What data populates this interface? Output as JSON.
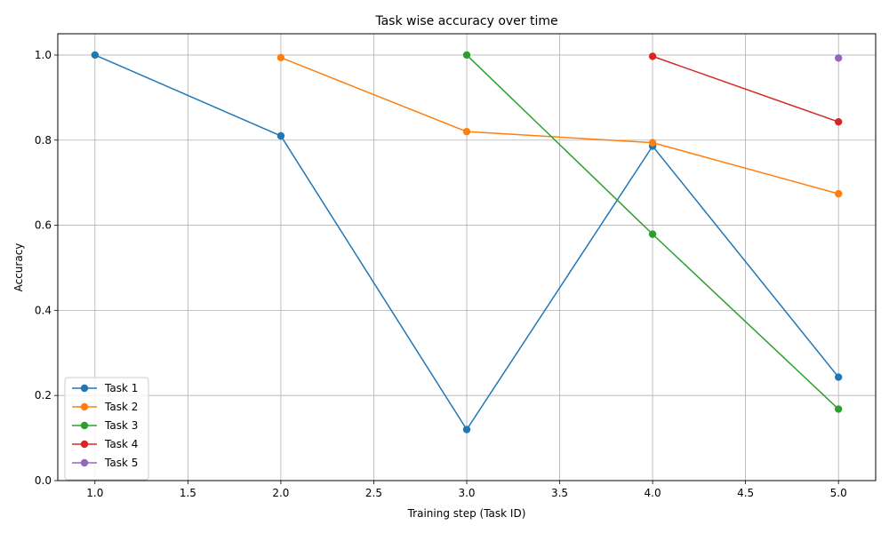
{
  "chart_data": {
    "type": "line",
    "title": "Task wise accuracy over time",
    "xlabel": "Training step (Task ID)",
    "ylabel": "Accuracy",
    "xlim": [
      0.8,
      5.2
    ],
    "ylim": [
      0.0,
      1.05
    ],
    "xticks": [
      1.0,
      1.5,
      2.0,
      2.5,
      3.0,
      3.5,
      4.0,
      4.5,
      5.0
    ],
    "xtick_labels": [
      "1.0",
      "1.5",
      "2.0",
      "2.5",
      "3.0",
      "3.5",
      "4.0",
      "4.5",
      "5.0"
    ],
    "yticks": [
      0.0,
      0.2,
      0.4,
      0.6,
      0.8,
      1.0
    ],
    "ytick_labels": [
      "0.0",
      "0.2",
      "0.4",
      "0.6",
      "0.8",
      "1.0"
    ],
    "grid": true,
    "legend_position": "lower-left",
    "series": [
      {
        "name": "Task 1",
        "color": "#1f77b4",
        "x": [
          1,
          2,
          3,
          4,
          5
        ],
        "y": [
          1.0,
          0.81,
          0.12,
          0.786,
          0.243
        ]
      },
      {
        "name": "Task 2",
        "color": "#ff7f0e",
        "x": [
          2,
          3,
          4,
          5
        ],
        "y": [
          0.994,
          0.82,
          0.794,
          0.674
        ]
      },
      {
        "name": "Task 3",
        "color": "#2ca02c",
        "x": [
          3,
          4,
          5
        ],
        "y": [
          1.0,
          0.579,
          0.168
        ]
      },
      {
        "name": "Task 4",
        "color": "#d62728",
        "x": [
          4,
          5
        ],
        "y": [
          0.997,
          0.843
        ]
      },
      {
        "name": "Task 5",
        "color": "#9467bd",
        "x": [
          5
        ],
        "y": [
          0.993
        ]
      }
    ]
  }
}
